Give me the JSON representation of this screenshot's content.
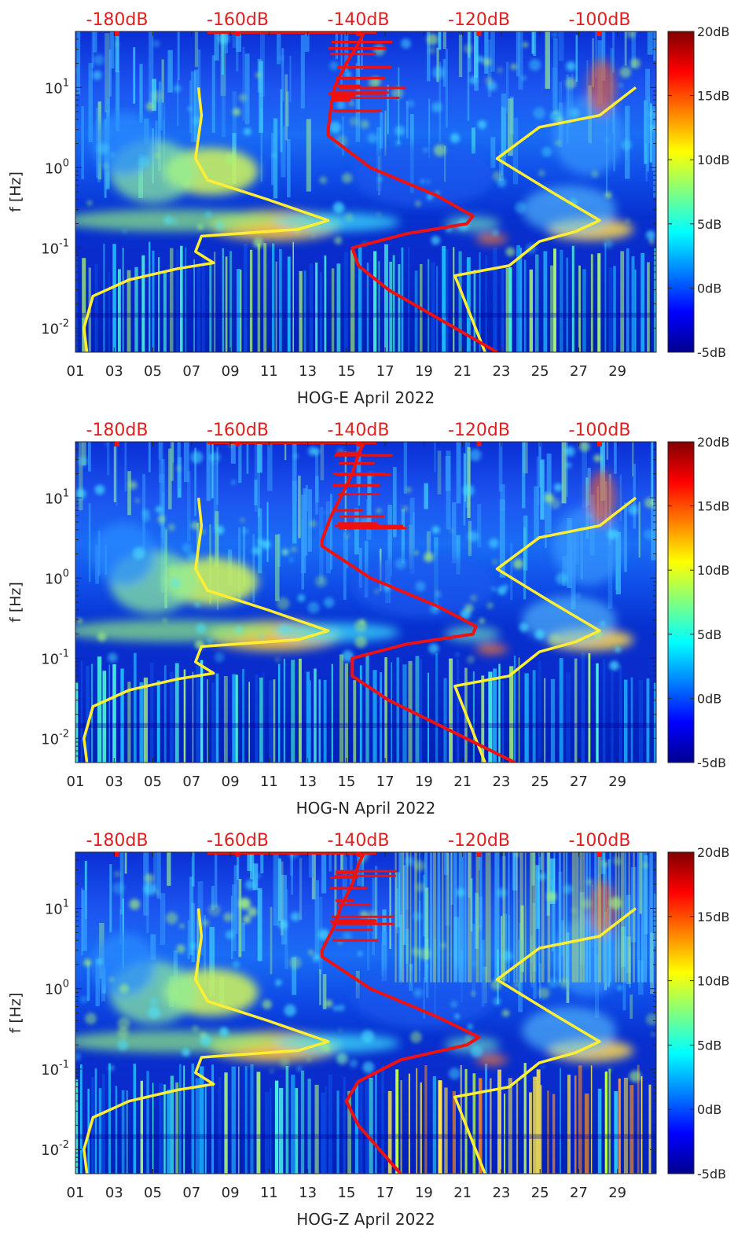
{
  "colors": {
    "jet": [
      "#00008f",
      "#0000ff",
      "#0080ff",
      "#00ffff",
      "#80ff80",
      "#ffff00",
      "#ff8000",
      "#ff0000",
      "#800000"
    ],
    "low_noise_curve": "#ffee33",
    "model_curve": "#ee1111",
    "top_scale_text": "#e02020"
  },
  "x_axis": {
    "ticks": [
      "01",
      "03",
      "05",
      "07",
      "09",
      "11",
      "13",
      "15",
      "17",
      "19",
      "21",
      "23",
      "25",
      "27",
      "29"
    ]
  },
  "top_scale": [
    "-180dB",
    "-160dB",
    "-140dB",
    "-120dB",
    "-100dB"
  ],
  "y_axis": {
    "label": "f [Hz]",
    "ticks": [
      "10-2",
      "10-1",
      "100",
      "101"
    ]
  },
  "colorbar": {
    "ticks": [
      "20dB",
      "15dB",
      "10dB",
      "5dB",
      "0dB",
      "-5dB"
    ],
    "range_db": [
      -5,
      20
    ],
    "colormap": "jet"
  },
  "chart_data": [
    {
      "type": "heatmap",
      "title": "",
      "xlabel": "HOG-E April 2022",
      "ylabel": "f [Hz]",
      "xlim_day": [
        1,
        31
      ],
      "ylim_hz": [
        0.005,
        50
      ],
      "y_scale": "log",
      "top_axis_ticks_db": [
        -180,
        -160,
        -140,
        -120,
        -100
      ],
      "colorbar_db": [
        -5,
        20
      ],
      "series": [
        {
          "color": "yellow",
          "points_db_hz": [
            [
              -185,
              0.005
            ],
            [
              -185.5,
              0.01
            ],
            [
              -184,
              0.025
            ],
            [
              -178,
              0.04
            ],
            [
              -170,
              0.055
            ],
            [
              -164,
              0.065
            ],
            [
              -167,
              0.09
            ],
            [
              -166,
              0.14
            ],
            [
              -150,
              0.17
            ],
            [
              -145,
              0.22
            ],
            [
              -155,
              0.4
            ],
            [
              -165,
              0.7
            ],
            [
              -167,
              1.3
            ],
            [
              -166,
              4.5
            ],
            [
              -166.5,
              10
            ]
          ]
        },
        {
          "color": "yellow",
          "points_db_hz": [
            [
              -119,
              0.005
            ],
            [
              -124,
              0.045
            ],
            [
              -115,
              0.06
            ],
            [
              -110,
              0.12
            ],
            [
              -104,
              0.16
            ],
            [
              -100,
              0.22
            ],
            [
              -108,
              0.5
            ],
            [
              -117,
              1.3
            ],
            [
              -110,
              3.2
            ],
            [
              -100,
              4.5
            ],
            [
              -94,
              10
            ]
          ]
        },
        {
          "color": "red",
          "points_db_hz": [
            [
              -117,
              0.005
            ],
            [
              -135,
              0.03
            ],
            [
              -140,
              0.06
            ],
            [
              -141,
              0.1
            ],
            [
              -132,
              0.15
            ],
            [
              -122,
              0.2
            ],
            [
              -121,
              0.25
            ],
            [
              -127,
              0.45
            ],
            [
              -138,
              1.0
            ],
            [
              -145,
              2.5
            ],
            [
              -145,
              3.0
            ],
            [
              -144.5,
              6
            ],
            [
              -144,
              10
            ],
            [
              -142,
              20
            ],
            [
              -140,
              35
            ],
            [
              -139,
              50
            ]
          ]
        }
      ]
    },
    {
      "type": "heatmap",
      "title": "",
      "xlabel": "HOG-N April 2022",
      "ylabel": "f [Hz]",
      "xlim_day": [
        1,
        31
      ],
      "ylim_hz": [
        0.005,
        50
      ],
      "y_scale": "log",
      "top_axis_ticks_db": [
        -180,
        -160,
        -140,
        -120,
        -100
      ],
      "colorbar_db": [
        -5,
        20
      ],
      "series": [
        {
          "color": "yellow",
          "points_db_hz": [
            [
              -185,
              0.005
            ],
            [
              -185.5,
              0.01
            ],
            [
              -184,
              0.025
            ],
            [
              -178,
              0.04
            ],
            [
              -170,
              0.055
            ],
            [
              -164,
              0.065
            ],
            [
              -167,
              0.09
            ],
            [
              -166,
              0.14
            ],
            [
              -150,
              0.17
            ],
            [
              -145,
              0.22
            ],
            [
              -155,
              0.4
            ],
            [
              -165,
              0.7
            ],
            [
              -167,
              1.3
            ],
            [
              -166,
              4.5
            ],
            [
              -166.5,
              10
            ]
          ]
        },
        {
          "color": "yellow",
          "points_db_hz": [
            [
              -119,
              0.005
            ],
            [
              -124,
              0.045
            ],
            [
              -115,
              0.06
            ],
            [
              -110,
              0.12
            ],
            [
              -104,
              0.16
            ],
            [
              -100,
              0.22
            ],
            [
              -108,
              0.5
            ],
            [
              -117,
              1.3
            ],
            [
              -110,
              3.2
            ],
            [
              -100,
              4.5
            ],
            [
              -94,
              10
            ]
          ]
        },
        {
          "color": "red",
          "points_db_hz": [
            [
              -114,
              0.005
            ],
            [
              -135,
              0.03
            ],
            [
              -141,
              0.06
            ],
            [
              -141,
              0.1
            ],
            [
              -132,
              0.15
            ],
            [
              -121,
              0.2
            ],
            [
              -120.5,
              0.25
            ],
            [
              -127,
              0.45
            ],
            [
              -138,
              1.0
            ],
            [
              -146,
              2.5
            ],
            [
              -146,
              3.0
            ],
            [
              -144.5,
              6
            ],
            [
              -143,
              10
            ],
            [
              -141,
              20
            ],
            [
              -140,
              35
            ],
            [
              -139,
              50
            ]
          ]
        }
      ]
    },
    {
      "type": "heatmap",
      "title": "",
      "xlabel": "HOG-Z April 2022",
      "ylabel": "f [Hz]",
      "xlim_day": [
        1,
        31
      ],
      "ylim_hz": [
        0.005,
        50
      ],
      "y_scale": "log",
      "top_axis_ticks_db": [
        -180,
        -160,
        -140,
        -120,
        -100
      ],
      "colorbar_db": [
        -5,
        20
      ],
      "series": [
        {
          "color": "yellow",
          "points_db_hz": [
            [
              -185,
              0.005
            ],
            [
              -185.5,
              0.01
            ],
            [
              -184,
              0.025
            ],
            [
              -178,
              0.04
            ],
            [
              -170,
              0.055
            ],
            [
              -164,
              0.065
            ],
            [
              -167,
              0.09
            ],
            [
              -166,
              0.14
            ],
            [
              -150,
              0.17
            ],
            [
              -145,
              0.22
            ],
            [
              -155,
              0.4
            ],
            [
              -165,
              0.7
            ],
            [
              -167,
              1.3
            ],
            [
              -166,
              4.5
            ],
            [
              -166.5,
              10
            ]
          ]
        },
        {
          "color": "yellow",
          "points_db_hz": [
            [
              -119,
              0.005
            ],
            [
              -124,
              0.045
            ],
            [
              -115,
              0.06
            ],
            [
              -110,
              0.12
            ],
            [
              -104,
              0.16
            ],
            [
              -100,
              0.22
            ],
            [
              -108,
              0.5
            ],
            [
              -117,
              1.3
            ],
            [
              -110,
              3.2
            ],
            [
              -100,
              4.5
            ],
            [
              -94,
              10
            ]
          ]
        },
        {
          "color": "red",
          "points_db_hz": [
            [
              -133,
              0.005
            ],
            [
              -140,
              0.02
            ],
            [
              -142,
              0.04
            ],
            [
              -140,
              0.07
            ],
            [
              -133,
              0.13
            ],
            [
              -122,
              0.2
            ],
            [
              -120,
              0.25
            ],
            [
              -127,
              0.45
            ],
            [
              -138,
              1.0
            ],
            [
              -146,
              2.5
            ],
            [
              -146,
              3.0
            ],
            [
              -144,
              6
            ],
            [
              -143,
              10
            ],
            [
              -141,
              20
            ],
            [
              -140,
              35
            ],
            [
              -139,
              50
            ]
          ]
        }
      ]
    }
  ]
}
